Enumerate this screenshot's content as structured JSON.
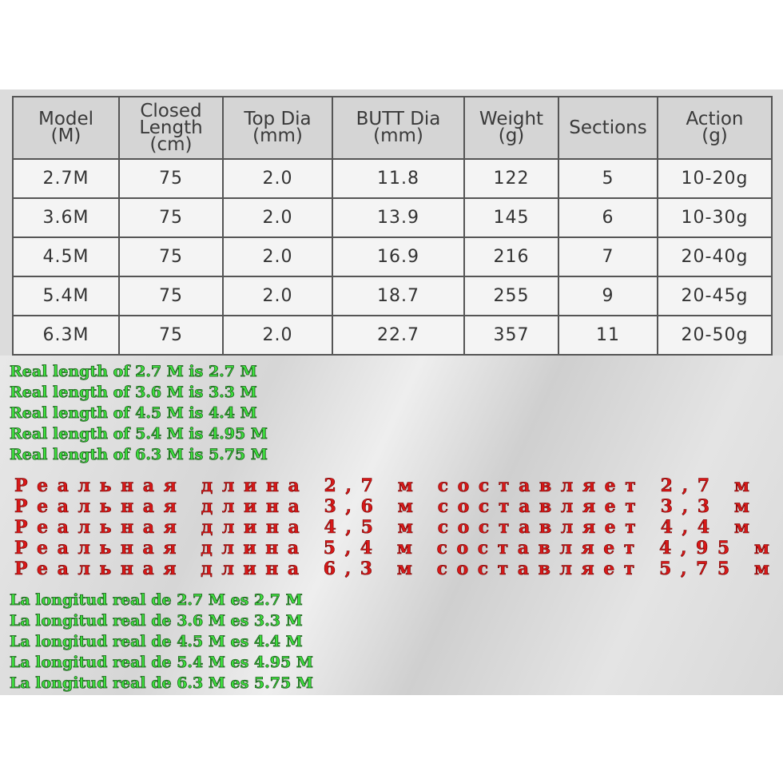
{
  "table": {
    "header": [
      "Model\n(M)",
      "Closed\nLength\n(cm)",
      "Top Dia\n(mm)",
      "BUTT Dia\n(mm)",
      "Weight\n(g)",
      "Sections",
      "Action\n(g)"
    ],
    "rows": [
      [
        "2.7M",
        "75",
        "2.0",
        "11.8",
        "122",
        "5",
        "10-20g"
      ],
      [
        "3.6M",
        "75",
        "2.0",
        "13.9",
        "145",
        "6",
        "10-30g"
      ],
      [
        "4.5M",
        "75",
        "2.0",
        "16.9",
        "216",
        "7",
        "20-40g"
      ],
      [
        "5.4M",
        "75",
        "2.0",
        "18.7",
        "255",
        "9",
        "20-45g"
      ],
      [
        "6.3M",
        "75",
        "2.0",
        "22.7",
        "357",
        "11",
        "20-50g"
      ]
    ]
  },
  "notes_en": [
    "Real length of 2.7 M is 2.7 M",
    "Real length of 3.6 M is 3.3 M",
    "Real length of 4.5 M is 4.4 M",
    "Real length of 5.4 M is 4.95 M",
    "Real length of 6.3 M is 5.75 M"
  ],
  "notes_ru": [
    "Реальная длина 2,7 м составляет 2,7 м",
    "Реальная длина 3,6 м составляет 3,3 м",
    "Реальная длина 4,5 м составляет 4,4 м",
    "Реальная длина 5,4 м составляет 4,95 м",
    "Реальная длина 6,3 м составляет 5,75 м"
  ],
  "notes_es": [
    "La longitud real de 2.7 M es 2.7 M",
    "La longitud real de 3.6 M es 3.3 M",
    "La longitud real de 4.5 M es 4.4 M",
    "La longitud real de 5.4 M es 4.95 M",
    "La longitud real de 6.3 M es 5.75 M"
  ]
}
